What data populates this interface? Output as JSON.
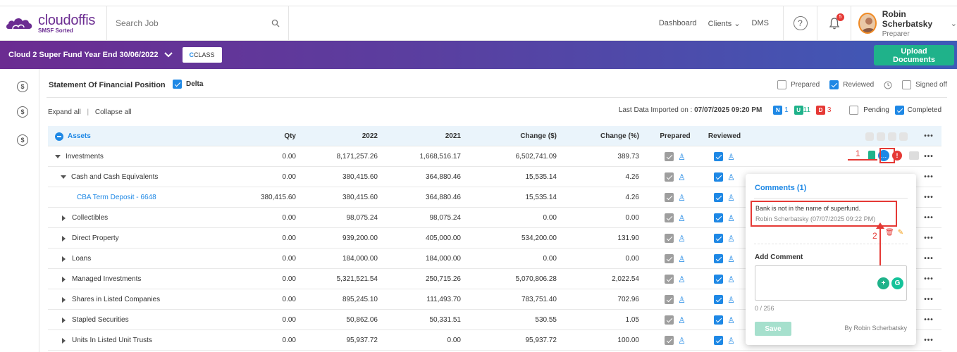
{
  "brand": {
    "name": "cloudoffis",
    "tagline": "SMSF Sorted"
  },
  "search": {
    "placeholder": "Search Job"
  },
  "nav": {
    "dashboard": "Dashboard",
    "clients": "Clients",
    "dms": "DMS"
  },
  "notifications": {
    "count": "5"
  },
  "user": {
    "name": "Robin Scherbatsky",
    "role": "Preparer"
  },
  "banner": {
    "fund": "Cloud 2 Super Fund Year End 30/06/2022",
    "class_logo": "CLASS",
    "upload_label": "Upload Documents"
  },
  "page": {
    "title": "Statement Of Financial Position",
    "delta_label": "Delta",
    "filters": {
      "prepared": "Prepared",
      "reviewed": "Reviewed",
      "signed_off": "Signed off"
    },
    "expand_all": "Expand all",
    "collapse_all": "Collapse all",
    "import_label": "Last Data Imported on :",
    "import_date": "07/07/2025 09:20 PM",
    "badges": {
      "n_letter": "N",
      "n_count": "1",
      "u_letter": "U",
      "u_count": "11",
      "d_letter": "D",
      "d_count": "3"
    },
    "pending": "Pending",
    "completed": "Completed"
  },
  "table": {
    "headers": {
      "name": "Assets",
      "qty": "Qty",
      "y2022": "2022",
      "y2021": "2021",
      "change": "Change ($)",
      "pct": "Change (%)",
      "prepared": "Prepared",
      "reviewed": "Reviewed"
    },
    "rows": [
      {
        "name": "Investments",
        "qty": "0.00",
        "y2022": "8,171,257.26",
        "y2021": "1,668,516.17",
        "change": "6,502,741.09",
        "pct": "389.73"
      },
      {
        "name": "Cash and Cash Equivalents",
        "qty": "0.00",
        "y2022": "380,415.60",
        "y2021": "364,880.46",
        "change": "15,535.14",
        "pct": "4.26"
      },
      {
        "name": "CBA Term Deposit - 6648",
        "qty": "380,415.60",
        "y2022": "380,415.60",
        "y2021": "364,880.46",
        "change": "15,535.14",
        "pct": "4.26"
      },
      {
        "name": "Collectibles",
        "qty": "0.00",
        "y2022": "98,075.24",
        "y2021": "98,075.24",
        "change": "0.00",
        "pct": "0.00"
      },
      {
        "name": "Direct Property",
        "qty": "0.00",
        "y2022": "939,200.00",
        "y2021": "405,000.00",
        "change": "534,200.00",
        "pct": "131.90"
      },
      {
        "name": "Loans",
        "qty": "0.00",
        "y2022": "184,000.00",
        "y2021": "184,000.00",
        "change": "0.00",
        "pct": "0.00"
      },
      {
        "name": "Managed Investments",
        "qty": "0.00",
        "y2022": "5,321,521.54",
        "y2021": "250,715.26",
        "change": "5,070,806.28",
        "pct": "2,022.54"
      },
      {
        "name": "Shares in Listed Companies",
        "qty": "0.00",
        "y2022": "895,245.10",
        "y2021": "111,493.70",
        "change": "783,751.40",
        "pct": "702.96"
      },
      {
        "name": "Stapled Securities",
        "qty": "0.00",
        "y2022": "50,862.06",
        "y2021": "50,331.51",
        "change": "530.55",
        "pct": "1.05"
      },
      {
        "name": "Units In Listed Unit Trusts",
        "qty": "0.00",
        "y2022": "95,937.72",
        "y2021": "0.00",
        "change": "95,937.72",
        "pct": "100.00"
      }
    ]
  },
  "comments": {
    "title": "Comments (1)",
    "text": "Bank is not in the name of superfund.",
    "meta": "Robin Scherbatsky (07/07/2025 09:22 PM)",
    "add_label": "Add Comment",
    "char_count": "0 / 256",
    "save_label": "Save",
    "by_label": "By Robin Scherbatsky"
  },
  "annotations": {
    "one": "1",
    "two": "2"
  },
  "colors": {
    "brand_purple": "#6b2c91",
    "accent_blue": "#1e88e5",
    "accent_green": "#1fb28a",
    "alert_red": "#e53935"
  }
}
